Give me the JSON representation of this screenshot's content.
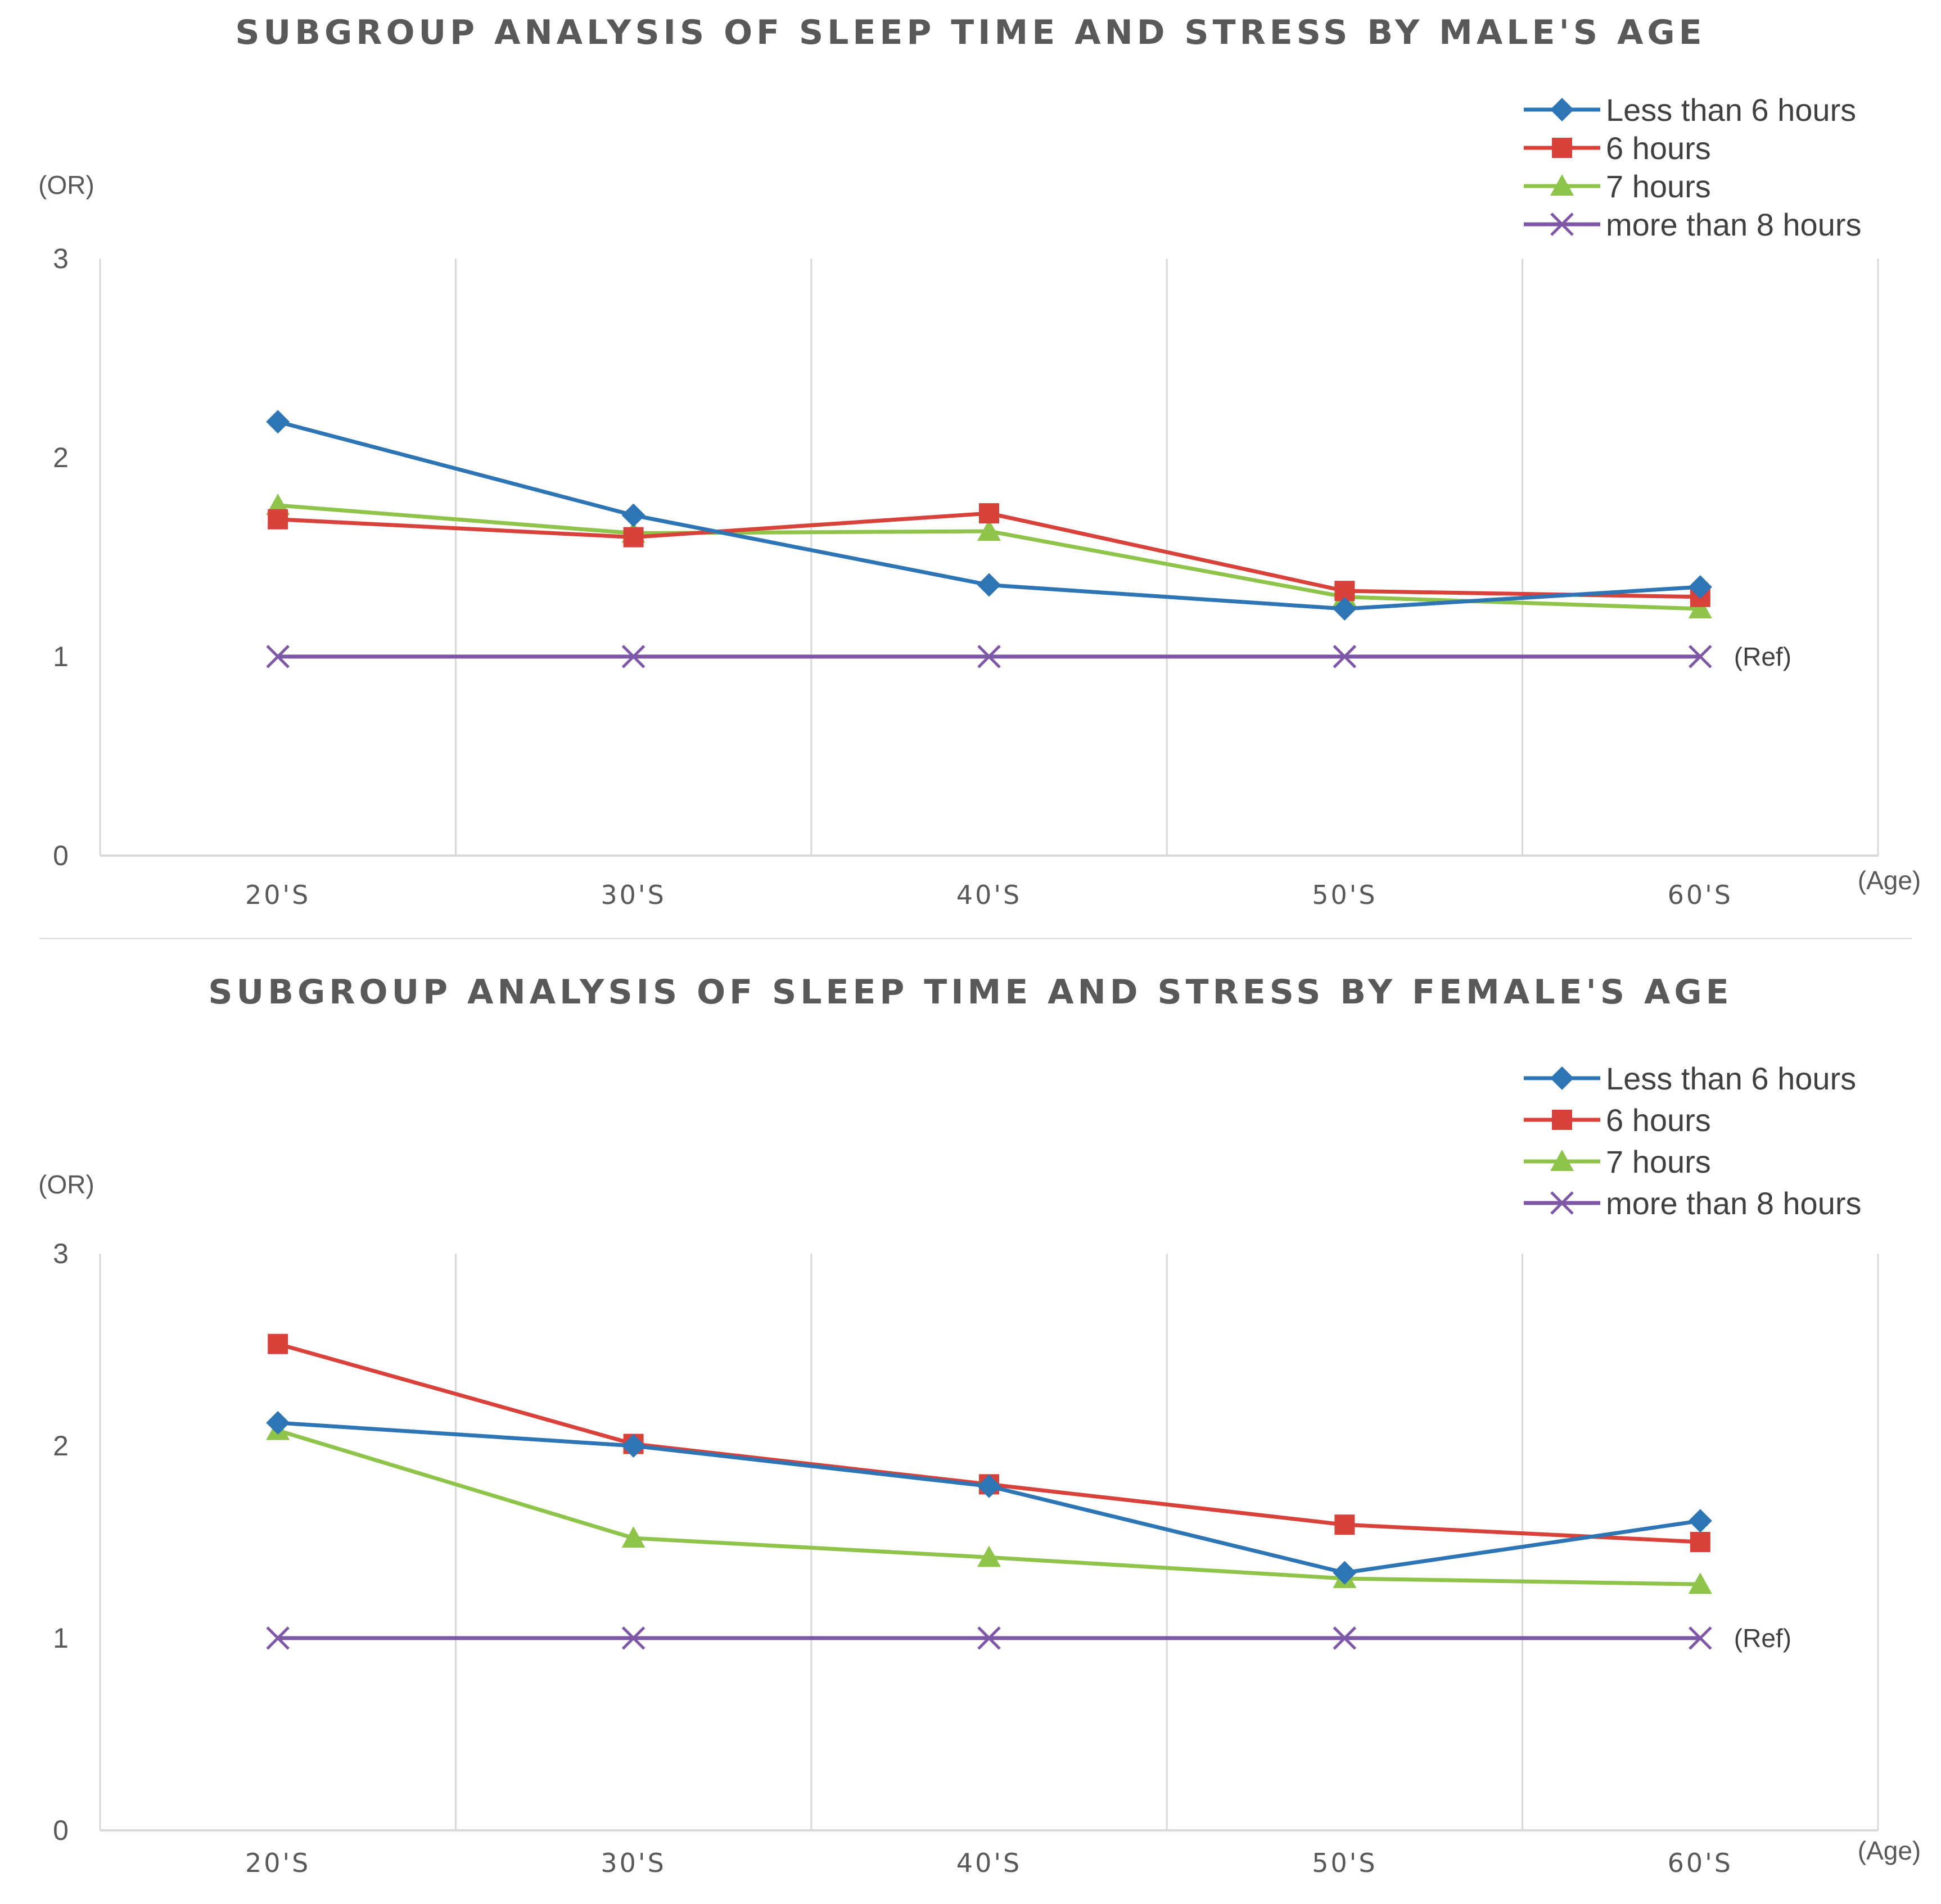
{
  "colors": {
    "less_than_6": "#2e75b6",
    "six": "#d9413b",
    "seven": "#8ec44a",
    "more_than_8": "#7e57a6",
    "grid": "#d9d9d9",
    "text": "#595959"
  },
  "chart_data": [
    {
      "type": "line",
      "title": "SUBGROUP ANALYSIS OF SLEEP TIME AND STRESS BY MALE'S AGE",
      "ylabel": "(OR)",
      "xlabel": "(Age)",
      "ylim": [
        0,
        3
      ],
      "yticks": [
        "0",
        "1",
        "2",
        "3"
      ],
      "categories": [
        "20'S",
        "30'S",
        "40'S",
        "50'S",
        "60'S"
      ],
      "ref_label": "(Ref)",
      "legend_position": "top-right",
      "series": [
        {
          "name": "Less than 6 hours",
          "color_key": "less_than_6",
          "marker": "diamond",
          "values": [
            2.18,
            1.71,
            1.36,
            1.24,
            1.35
          ]
        },
        {
          "name": "6 hours",
          "color_key": "six",
          "marker": "square",
          "values": [
            1.69,
            1.6,
            1.72,
            1.33,
            1.3
          ]
        },
        {
          "name": "7 hours",
          "color_key": "seven",
          "marker": "triangle",
          "values": [
            1.76,
            1.62,
            1.63,
            1.3,
            1.24
          ]
        },
        {
          "name": "more than 8 hours",
          "color_key": "more_than_8",
          "marker": "x",
          "values": [
            1,
            1,
            1,
            1,
            1
          ]
        }
      ]
    },
    {
      "type": "line",
      "title": "SUBGROUP ANALYSIS OF SLEEP TIME AND STRESS BY FEMALE'S AGE",
      "ylabel": "(OR)",
      "xlabel": "(Age)",
      "ylim": [
        0,
        3
      ],
      "yticks": [
        "0",
        "1",
        "2",
        "3"
      ],
      "categories": [
        "20'S",
        "30'S",
        "40'S",
        "50'S",
        "60'S"
      ],
      "ref_label": "(Ref)",
      "legend_position": "top-right",
      "series": [
        {
          "name": "Less than 6 hours",
          "color_key": "less_than_6",
          "marker": "diamond",
          "values": [
            2.12,
            2.0,
            1.79,
            1.34,
            1.61
          ]
        },
        {
          "name": "6 hours",
          "color_key": "six",
          "marker": "square",
          "values": [
            2.53,
            2.01,
            1.8,
            1.59,
            1.5
          ]
        },
        {
          "name": "7 hours",
          "color_key": "seven",
          "marker": "triangle",
          "values": [
            2.08,
            1.52,
            1.42,
            1.31,
            1.28
          ]
        },
        {
          "name": "more than 8 hours",
          "color_key": "more_than_8",
          "marker": "x",
          "values": [
            1,
            1,
            1,
            1,
            1
          ]
        }
      ]
    }
  ]
}
